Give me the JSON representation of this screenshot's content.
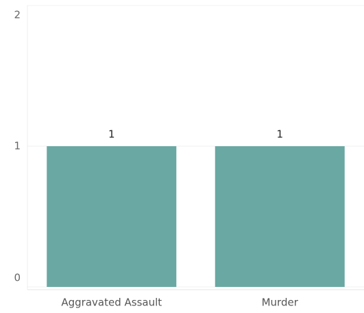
{
  "chart_data": {
    "type": "bar",
    "categories": [
      "Aggravated Assault",
      "Murder"
    ],
    "values": [
      1,
      1
    ],
    "color": "#6aa8a3",
    "ylim": [
      0,
      2
    ],
    "yticks": [
      0,
      1,
      2
    ],
    "grid": true
  }
}
